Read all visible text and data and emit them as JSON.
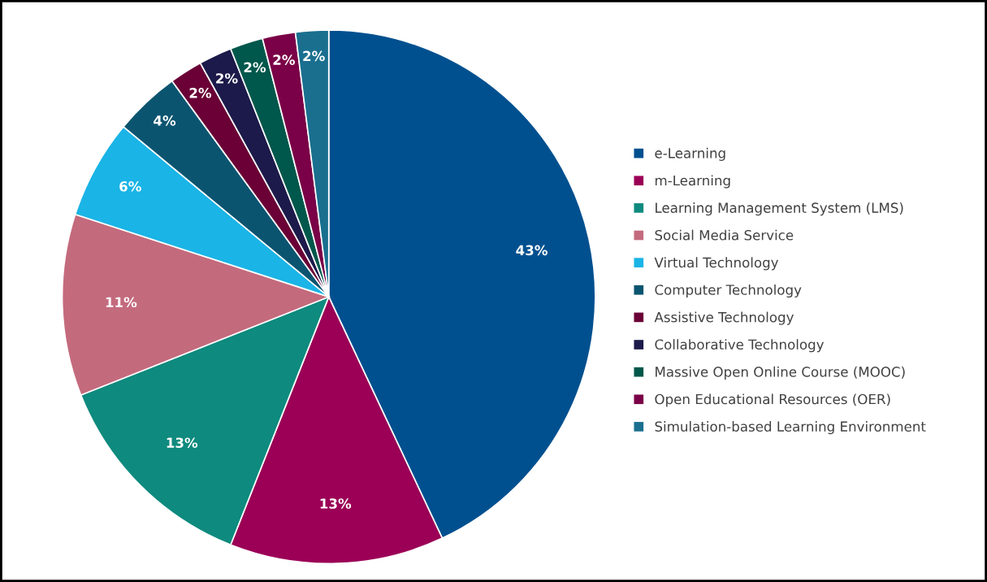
{
  "chart_data": {
    "type": "pie",
    "categories": [
      "e-Learning",
      "m-Learning",
      "Learning Management System (LMS)",
      "Social Media Service",
      "Virtual Technology",
      "Computer Technology",
      "Assistive Technology",
      "Collaborative Technology",
      "Massive Open Online Course (MOOC)",
      "Open Educational Resources (OER)",
      "Simulation-based Learning Environment"
    ],
    "values": [
      43,
      13,
      13,
      11,
      6,
      4,
      2,
      2,
      2,
      2,
      2
    ],
    "colors": [
      "#00508f",
      "#9b0056",
      "#0e8a7e",
      "#c46a7d",
      "#1ab4e6",
      "#0b5470",
      "#6a0036",
      "#1c1a4a",
      "#00574b",
      "#7a0047",
      "#1a6f8f"
    ],
    "value_labels": [
      "43%",
      "13%",
      "13%",
      "11%",
      "6%",
      "4%",
      "2%",
      "2%",
      "2%",
      "2%",
      "2%"
    ],
    "legend": "right"
  }
}
